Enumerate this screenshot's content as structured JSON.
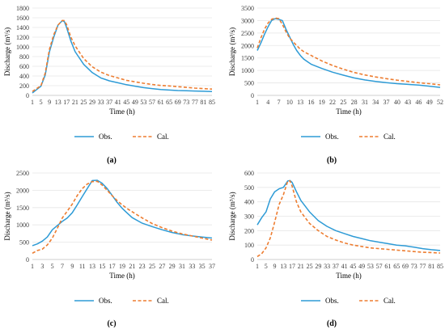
{
  "figure": {
    "obs_color": "#2E9BD6",
    "cal_color": "#ED7D31"
  },
  "chart_data": [
    {
      "type": "line",
      "caption": "(a)",
      "xlabel": "Time (h)",
      "ylabel": "Discharge (m³/s)",
      "ylim": [
        0,
        1800
      ],
      "yticks": [
        0,
        200,
        400,
        600,
        800,
        1000,
        1200,
        1400,
        1600,
        1800
      ],
      "xticks": [
        1,
        5,
        9,
        13,
        17,
        21,
        25,
        29,
        33,
        37,
        41,
        45,
        49,
        53,
        57,
        61,
        65,
        69,
        73,
        77,
        81,
        85
      ],
      "x": [
        1,
        3,
        5,
        7,
        9,
        11,
        13,
        15,
        16,
        17,
        19,
        21,
        25,
        29,
        33,
        37,
        41,
        45,
        49,
        53,
        57,
        61,
        65,
        69,
        73,
        77,
        81,
        85
      ],
      "series": [
        {
          "name": "Obs.",
          "values": [
            50,
            120,
            190,
            420,
            900,
            1200,
            1450,
            1540,
            1520,
            1400,
            1120,
            900,
            640,
            470,
            360,
            300,
            260,
            220,
            190,
            160,
            140,
            120,
            110,
            100,
            95,
            90,
            85,
            80
          ]
        },
        {
          "name": "Cal.",
          "values": [
            80,
            140,
            200,
            460,
            950,
            1250,
            1450,
            1545,
            1540,
            1460,
            1200,
            1020,
            760,
            590,
            480,
            410,
            360,
            310,
            280,
            250,
            225,
            205,
            195,
            180,
            165,
            150,
            140,
            130
          ]
        }
      ]
    },
    {
      "type": "line",
      "caption": "(b)",
      "xlabel": "Time (h)",
      "ylabel": "Discharge (m³/s)",
      "ylim": [
        0,
        3500
      ],
      "yticks": [
        0,
        500,
        1000,
        1500,
        2000,
        2500,
        3000,
        3500
      ],
      "xticks": [
        1,
        4,
        7,
        10,
        13,
        16,
        19,
        22,
        25,
        28,
        31,
        34,
        37,
        40,
        43,
        46,
        49,
        52
      ],
      "x": [
        1,
        2,
        3,
        4,
        5,
        6,
        7,
        8,
        9,
        10,
        11,
        12,
        13,
        14,
        16,
        19,
        22,
        25,
        28,
        31,
        34,
        37,
        40,
        43,
        46,
        49,
        52
      ],
      "series": [
        {
          "name": "Obs.",
          "values": [
            1800,
            2100,
            2450,
            2750,
            3000,
            3080,
            3050,
            3000,
            2650,
            2350,
            2050,
            1800,
            1600,
            1450,
            1250,
            1080,
            930,
            810,
            700,
            620,
            560,
            510,
            470,
            440,
            410,
            370,
            320
          ]
        },
        {
          "name": "Cal.",
          "values": [
            1900,
            2300,
            2650,
            2900,
            3050,
            3100,
            3080,
            2850,
            2550,
            2300,
            2150,
            2000,
            1850,
            1750,
            1600,
            1380,
            1200,
            1050,
            920,
            820,
            740,
            670,
            610,
            560,
            510,
            470,
            420
          ]
        }
      ]
    },
    {
      "type": "line",
      "caption": "(c)",
      "xlabel": "Time (h)",
      "ylabel": "Discharge (m³/s)",
      "ylim": [
        0,
        2500
      ],
      "yticks": [
        0,
        500,
        1000,
        1500,
        2000,
        2500
      ],
      "xticks": [
        1,
        3,
        5,
        7,
        9,
        11,
        13,
        15,
        17,
        19,
        21,
        23,
        25,
        27,
        29,
        31,
        33,
        35,
        37
      ],
      "x": [
        1,
        2,
        3,
        4,
        5,
        6,
        7,
        8,
        9,
        10,
        11,
        12,
        13,
        14,
        15,
        16,
        17,
        18,
        19,
        20,
        21,
        23,
        25,
        27,
        29,
        31,
        33,
        35,
        37
      ],
      "series": [
        {
          "name": "Obs.",
          "values": [
            400,
            450,
            530,
            650,
            860,
            980,
            1100,
            1200,
            1350,
            1580,
            1820,
            2050,
            2280,
            2290,
            2200,
            2050,
            1850,
            1650,
            1480,
            1340,
            1210,
            1050,
            950,
            860,
            780,
            720,
            680,
            650,
            620
          ]
        },
        {
          "name": "Cal.",
          "values": [
            180,
            260,
            300,
            420,
            620,
            900,
            1200,
            1400,
            1600,
            1850,
            2050,
            2180,
            2250,
            2260,
            2150,
            2000,
            1840,
            1700,
            1580,
            1470,
            1380,
            1200,
            1040,
            920,
            820,
            740,
            680,
            620,
            560
          ]
        }
      ]
    },
    {
      "type": "line",
      "caption": "(d)",
      "xlabel": "Time (h)",
      "ylabel": "Discharge (m³/s)",
      "ylim": [
        0,
        600
      ],
      "yticks": [
        0,
        100,
        200,
        300,
        400,
        500,
        600
      ],
      "xticks": [
        1,
        5,
        9,
        13,
        17,
        21,
        25,
        29,
        33,
        37,
        41,
        45,
        49,
        53,
        57,
        61,
        65,
        69,
        73,
        77,
        81,
        85
      ],
      "x": [
        1,
        3,
        5,
        7,
        9,
        11,
        13,
        15,
        16,
        17,
        19,
        21,
        25,
        29,
        33,
        37,
        41,
        45,
        49,
        53,
        57,
        61,
        65,
        69,
        73,
        77,
        81,
        85
      ],
      "series": [
        {
          "name": "Obs.",
          "values": [
            240,
            290,
            330,
            420,
            470,
            490,
            500,
            545,
            548,
            535,
            470,
            410,
            330,
            270,
            230,
            200,
            180,
            160,
            145,
            130,
            120,
            110,
            100,
            95,
            85,
            75,
            68,
            62
          ]
        },
        {
          "name": "Cal.",
          "values": [
            20,
            40,
            80,
            150,
            260,
            380,
            450,
            545,
            545,
            510,
            400,
            330,
            250,
            200,
            160,
            135,
            115,
            100,
            90,
            80,
            75,
            70,
            65,
            60,
            55,
            50,
            48,
            45
          ]
        }
      ]
    }
  ]
}
